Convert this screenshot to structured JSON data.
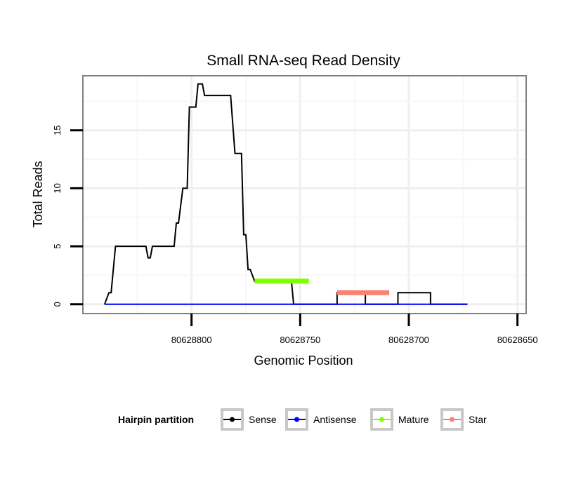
{
  "chart_data": {
    "type": "line",
    "title": "Small RNA-seq Read Density",
    "xlabel": "Genomic Position",
    "ylabel": "Total Reads",
    "x_reversed": true,
    "xlim": [
      80628850,
      80628646
    ],
    "ylim": [
      -0.8,
      19.7
    ],
    "x_ticks": [
      80628800,
      80628750,
      80628700,
      80628650
    ],
    "x_tick_labels": [
      "80628800",
      "80628750",
      "80628700",
      "80628650"
    ],
    "y_ticks": [
      0,
      5,
      10,
      15
    ],
    "y_tick_labels": [
      "0",
      "5",
      "10",
      "15"
    ],
    "grid": true,
    "legend": {
      "title": "Hairpin partition",
      "position": "bottom",
      "entries": [
        "Sense",
        "Antisense",
        "Mature",
        "Star"
      ]
    },
    "series": [
      {
        "name": "Sense",
        "color": "#000000",
        "x": [
          80628840,
          80628838,
          80628838,
          80628837,
          80628835,
          80628835,
          80628833,
          80628822,
          80628821,
          80628820,
          80628819,
          80628818,
          80628809,
          80628808,
          80628807,
          80628806,
          80628804,
          80628803,
          80628802,
          80628801,
          80628798,
          80628797,
          80628795,
          80628794,
          80628792,
          80628791,
          80628785,
          80628784,
          80628783,
          80628782,
          80628780,
          80628779,
          80628778,
          80628777,
          80628776,
          80628775,
          80628774,
          80628773,
          80628771,
          80628770,
          80628766,
          80628766,
          80628755,
          80628754,
          80628753,
          80628746,
          80628741,
          80628741,
          80628733,
          80628733,
          80628720,
          80628720,
          80628714,
          80628714,
          80628705,
          80628705,
          80628690,
          80628690,
          80628673,
          80628673
        ],
        "values": [
          0,
          1,
          1,
          1,
          5,
          5,
          5,
          5,
          5,
          4,
          4,
          5,
          5,
          5,
          7,
          7,
          10,
          10,
          10,
          17,
          17,
          19,
          19,
          18,
          18,
          18,
          18,
          18,
          18,
          18,
          13,
          13,
          13,
          13,
          6,
          6,
          3,
          3,
          2,
          2,
          2,
          2,
          2,
          2,
          0,
          0,
          0,
          0,
          0,
          1,
          1,
          0,
          0,
          0,
          0,
          1,
          1,
          0,
          0,
          0
        ]
      },
      {
        "name": "Antisense",
        "color": "#0000ff",
        "x": [
          80628840,
          80628673
        ],
        "values": [
          0,
          0
        ]
      },
      {
        "name": "Mature",
        "color": "#7fff00",
        "x": [
          80628771,
          80628746
        ],
        "values": [
          2,
          2
        ]
      },
      {
        "name": "Star",
        "color": "#fa8072",
        "x": [
          80628733,
          80628709
        ],
        "values": [
          1,
          1
        ]
      }
    ]
  }
}
